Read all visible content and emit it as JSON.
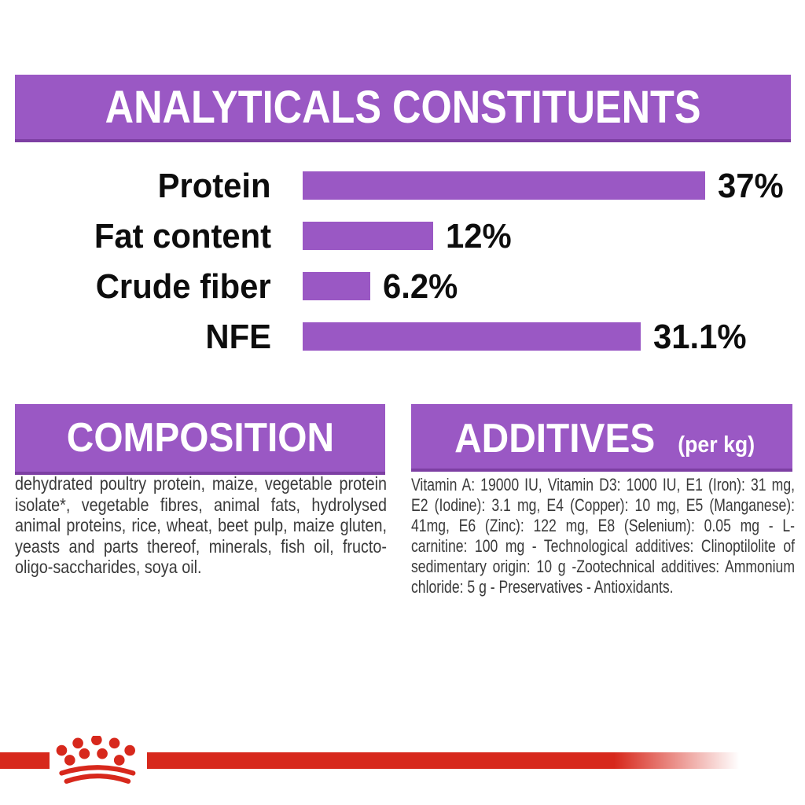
{
  "header": {
    "title": "ANALYTICALS CONSTITUENTS"
  },
  "chart_data": {
    "type": "bar",
    "orientation": "horizontal",
    "title": "ANALYTICALS CONSTITUENTS",
    "categories": [
      "Protein",
      "Fat content",
      "Crude fiber",
      "NFE"
    ],
    "values": [
      37,
      12,
      6.2,
      31.1
    ],
    "value_labels": [
      "37%",
      "12%",
      "6.2%",
      "31.1%"
    ],
    "unit": "%",
    "xlim": [
      0,
      40
    ],
    "grid": false,
    "legend": false,
    "bar_color": "#9a58c4",
    "label_color": "#0d0d0d"
  },
  "composition": {
    "title": "COMPOSITION",
    "body": "dehydrated poultry protein, maize, vegetable protein isolate*, vegetable fibres, animal fats, hydrolysed animal proteins, rice, wheat, beet pulp, maize gluten, yeasts and parts thereof, minerals, fish oil, fructo-oligo-saccharides, soya oil."
  },
  "additives": {
    "title": "ADDITIVES",
    "unit_suffix": "(per kg)",
    "body": "Vitamin A: 19000 IU, Vitamin D3: 1000 IU, E1 (Iron): 31 mg, E2 (Iodine): 3.1 mg, E4 (Copper): 10 mg, E5 (Manganese): 41mg, E6 (Zinc): 122 mg, E8 (Selenium): 0.05 mg - L- carnitine: 100 mg - Technological additives: Clinoptilolite of sedimentary origin: 10 g -Zootechnical additives: Ammonium chloride: 5 g - Preservatives - Antioxidants."
  },
  "brand": {
    "logo": "royal-canin-crown"
  },
  "colors": {
    "purple": "#9a58c4",
    "purple_dark": "#7d3fa3",
    "red": "#d7281c",
    "heading_text": "#ffffff",
    "body_text": "#3a3a3a"
  }
}
